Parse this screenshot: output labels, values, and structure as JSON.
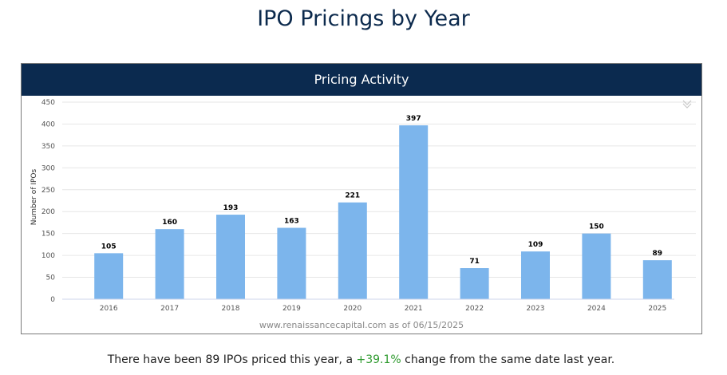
{
  "page": {
    "title": "IPO Pricings by Year"
  },
  "panel": {
    "header": "Pricing Activity",
    "menu_icon": "double-chevron-down-icon",
    "source_note": "www.renaissancecapital.com as of 06/15/2025"
  },
  "summary": {
    "prefix": "There have been ",
    "count": "89",
    "middle": " IPOs priced this year, a ",
    "change": "+39.1%",
    "suffix": " change from the same date last year."
  },
  "colors": {
    "bar": "#7cb5ec",
    "header_bg": "#0b2a4f",
    "title": "#0c2a4d",
    "positive_change": "#2e9a2e"
  },
  "chart_data": {
    "type": "bar",
    "categories": [
      "2016",
      "2017",
      "2018",
      "2019",
      "2020",
      "2021",
      "2022",
      "2023",
      "2024",
      "2025"
    ],
    "values": [
      105,
      160,
      193,
      163,
      221,
      397,
      71,
      109,
      150,
      89
    ],
    "data_labels": [
      "105",
      "160",
      "193",
      "163",
      "221",
      "397",
      "71",
      "109",
      "150",
      "89"
    ],
    "title": "",
    "xlabel": "",
    "ylabel": "Number of IPOs",
    "ylim": [
      0,
      450
    ],
    "yticks": [
      0,
      50,
      100,
      150,
      200,
      250,
      300,
      350,
      400,
      450
    ],
    "ytick_labels": [
      "0",
      "50",
      "100",
      "150",
      "200",
      "250",
      "300",
      "350",
      "400",
      "450"
    ],
    "grid": true,
    "legend": "none"
  }
}
